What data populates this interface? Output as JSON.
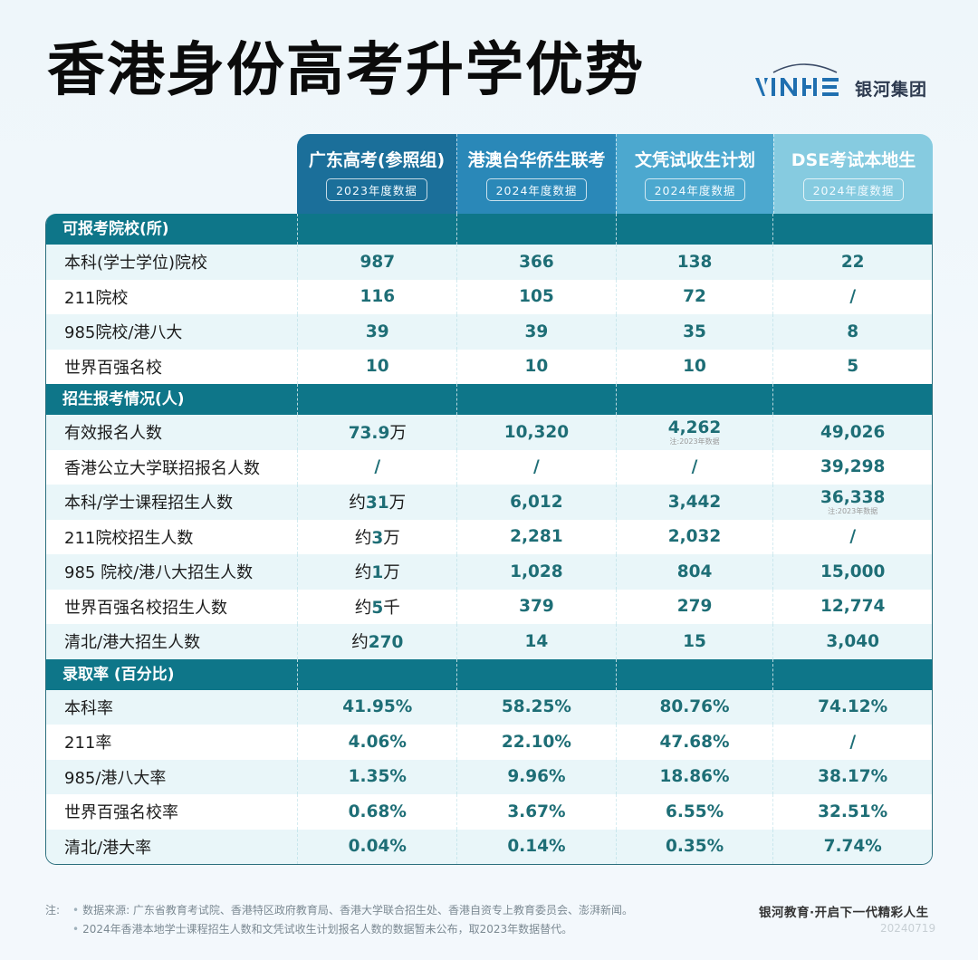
{
  "title": "香港身份高考升学优势",
  "logo": {
    "latin": "YINHE",
    "cn": "银河集团"
  },
  "columns": [
    {
      "name": "广东高考(参照组)",
      "badge": "2023年度数据",
      "color": "#1b6f9a"
    },
    {
      "name": "港澳台华侨生联考",
      "badge": "2024年度数据",
      "color": "#2a88b8"
    },
    {
      "name": "文凭试收生计划",
      "badge": "2024年度数据",
      "color": "#4ca8cf"
    },
    {
      "name": "DSE考试本地生",
      "badge": "2024年度数据",
      "color": "#86cbe0"
    }
  ],
  "sections": [
    {
      "label": "可报考院校(所)",
      "rows": [
        {
          "label": "本科(学士学位)院校",
          "values": [
            {
              "v": "987"
            },
            {
              "v": "366"
            },
            {
              "v": "138"
            },
            {
              "v": "22"
            }
          ]
        },
        {
          "label": "211院校",
          "values": [
            {
              "v": "116"
            },
            {
              "v": "105"
            },
            {
              "v": "72"
            },
            {
              "v": "/"
            }
          ]
        },
        {
          "label": "985院校/港八大",
          "values": [
            {
              "v": "39"
            },
            {
              "v": "39"
            },
            {
              "v": "35"
            },
            {
              "v": "8"
            }
          ]
        },
        {
          "label": "世界百强名校",
          "values": [
            {
              "v": "10"
            },
            {
              "v": "10"
            },
            {
              "v": "10"
            },
            {
              "v": "5"
            }
          ]
        }
      ]
    },
    {
      "label": "招生报考情况(人)",
      "rows": [
        {
          "label": "有效报名人数",
          "values": [
            {
              "v": "73.9",
              "unit": "万"
            },
            {
              "v": "10,320"
            },
            {
              "v": "4,262",
              "note": "注:2023年数据"
            },
            {
              "v": "49,026"
            }
          ]
        },
        {
          "label": "香港公立大学联招报名人数",
          "values": [
            {
              "v": "/"
            },
            {
              "v": "/"
            },
            {
              "v": "/"
            },
            {
              "v": "39,298"
            }
          ]
        },
        {
          "label": "本科/学士课程招生人数",
          "values": [
            {
              "prefix": "约",
              "v": "31",
              "unit": "万"
            },
            {
              "v": "6,012"
            },
            {
              "v": "3,442"
            },
            {
              "v": "36,338",
              "note": "注:2023年数据"
            }
          ]
        },
        {
          "label": "211院校招生人数",
          "values": [
            {
              "prefix": "约",
              "v": "3",
              "unit": "万"
            },
            {
              "v": "2,281"
            },
            {
              "v": "2,032"
            },
            {
              "v": "/"
            }
          ]
        },
        {
          "label": "985 院校/港八大招生人数",
          "values": [
            {
              "prefix": "约",
              "v": "1",
              "unit": "万"
            },
            {
              "v": "1,028"
            },
            {
              "v": "804"
            },
            {
              "v": "15,000"
            }
          ]
        },
        {
          "label": "世界百强名校招生人数",
          "values": [
            {
              "prefix": "约",
              "v": "5",
              "unit": "千"
            },
            {
              "v": "379"
            },
            {
              "v": "279"
            },
            {
              "v": "12,774"
            }
          ]
        },
        {
          "label": "清北/港大招生人数",
          "values": [
            {
              "prefix": "约",
              "v": "270"
            },
            {
              "v": "14"
            },
            {
              "v": "15"
            },
            {
              "v": "3,040"
            }
          ]
        }
      ]
    },
    {
      "label": "录取率 (百分比)",
      "rows": [
        {
          "label": "本科率",
          "values": [
            {
              "v": "41.95%"
            },
            {
              "v": "58.25%"
            },
            {
              "v": "80.76%"
            },
            {
              "v": "74.12%"
            }
          ]
        },
        {
          "label": "211率",
          "values": [
            {
              "v": "4.06%"
            },
            {
              "v": "22.10%"
            },
            {
              "v": "47.68%"
            },
            {
              "v": "/"
            }
          ]
        },
        {
          "label": "985/港八大率",
          "values": [
            {
              "v": "1.35%"
            },
            {
              "v": "9.96%"
            },
            {
              "v": "18.86%"
            },
            {
              "v": "38.17%"
            }
          ]
        },
        {
          "label": "世界百强名校率",
          "values": [
            {
              "v": "0.68%"
            },
            {
              "v": "3.67%"
            },
            {
              "v": "6.55%"
            },
            {
              "v": "32.51%"
            }
          ]
        },
        {
          "label": "清北/港大率",
          "values": [
            {
              "v": "0.04%"
            },
            {
              "v": "0.14%"
            },
            {
              "v": "0.35%"
            },
            {
              "v": "7.74%"
            }
          ]
        }
      ]
    }
  ],
  "footer": {
    "note_label": "注:",
    "notes": [
      "数据来源: 广东省教育考试院、香港特区政府教育局、香港大学联合招生处、香港自资专上教育委员会、澎湃新闻。",
      "2024年香港本地学士课程招生人数和文凭试收生计划报名人数的数据暂未公布，取2023年数据替代。"
    ],
    "slogan": "银河教育·开启下一代精彩人生",
    "date": "20240719"
  },
  "colors": {
    "section_bg": "#0e7689",
    "value_text": "#1e6e76",
    "row_alt": "#e9f6f9",
    "border": "#2b6f7e"
  }
}
